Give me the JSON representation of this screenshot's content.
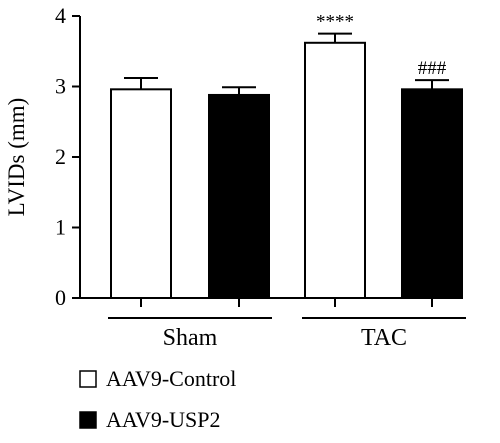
{
  "chart_data": {
    "type": "bar",
    "ylabel": "LVIDs (mm)",
    "ylim": [
      0,
      4
    ],
    "yticks": [
      0,
      1,
      2,
      3,
      4
    ],
    "groups": [
      "Sham",
      "TAC"
    ],
    "series": [
      {
        "name": "AAV9-Control",
        "color": "#ffffff",
        "values": [
          2.96,
          3.62
        ],
        "errors": [
          0.16,
          0.13
        ],
        "annotations": [
          "",
          "****"
        ]
      },
      {
        "name": "AAV9-USP2",
        "color": "#000000",
        "values": [
          2.88,
          2.96
        ],
        "errors": [
          0.11,
          0.13
        ],
        "annotations": [
          "",
          "###"
        ]
      }
    ],
    "grid": false,
    "legend_position": "bottom-left"
  }
}
